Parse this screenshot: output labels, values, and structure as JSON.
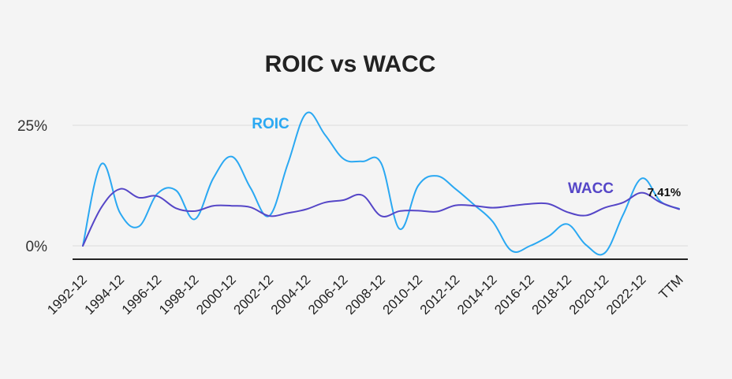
{
  "chart_data": {
    "type": "line",
    "title": "ROIC vs WACC",
    "y_tick_labels": [
      "25%",
      "0%"
    ],
    "y_tick_values": [
      25,
      0
    ],
    "ylim": [
      -3,
      27.5
    ],
    "grid": true,
    "x_tick_labels": [
      "1992-12",
      "1994-12",
      "1996-12",
      "1998-12",
      "2000-12",
      "2002-12",
      "2004-12",
      "2006-12",
      "2008-12",
      "2010-12",
      "2012-12",
      "2014-12",
      "2016-12",
      "2018-12",
      "2020-12",
      "2022-12",
      "TTM"
    ],
    "end_label": "7.41%",
    "colors": {
      "roic": "#2aa8f2",
      "wacc": "#5546c7",
      "axis": "#222222",
      "grid": "#dddddd"
    },
    "series": [
      {
        "name": "ROIC",
        "key": "roic",
        "x": [
          1992,
          1993,
          1994,
          1995,
          1996,
          1997,
          1998,
          1999,
          2000,
          2001,
          2002,
          2003,
          2004,
          2005,
          2006,
          2007,
          2008,
          2009,
          2010,
          2011,
          2012,
          2013,
          2014,
          2015,
          2016,
          2017,
          2018,
          2019,
          2020,
          2021,
          2022,
          2023,
          2024
        ],
        "values": [
          0,
          17,
          6.8,
          4,
          10.8,
          11.5,
          5.5,
          14,
          18.5,
          12,
          6.2,
          17,
          27.5,
          23,
          18,
          17.5,
          17.2,
          3.5,
          12.5,
          14.5,
          11.8,
          8.5,
          5,
          -1,
          0,
          2,
          4.5,
          0.2,
          -1.5,
          6.5,
          14,
          9.2,
          7.7
        ]
      },
      {
        "name": "WACC",
        "key": "wacc",
        "x": [
          1992,
          1993,
          1994,
          1995,
          1996,
          1997,
          1998,
          1999,
          2000,
          2001,
          2002,
          2003,
          2004,
          2005,
          2006,
          2007,
          2008,
          2009,
          2010,
          2011,
          2012,
          2013,
          2014,
          2015,
          2016,
          2017,
          2018,
          2019,
          2020,
          2021,
          2022,
          2023,
          2024
        ],
        "values": [
          0,
          8,
          11.8,
          10,
          10.3,
          7.8,
          7.2,
          8.3,
          8.3,
          8,
          6.2,
          6.8,
          7.6,
          9,
          9.5,
          10.5,
          6.2,
          7.2,
          7.3,
          7.1,
          8.4,
          8.3,
          7.9,
          8.3,
          8.7,
          8.7,
          7,
          6.3,
          7.9,
          9,
          11,
          9,
          7.6
        ]
      }
    ]
  }
}
